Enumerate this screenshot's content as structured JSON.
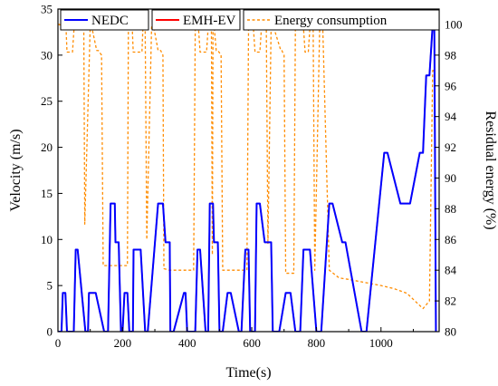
{
  "chart_data": {
    "type": "line",
    "title": "",
    "xlabel": "Time(s)",
    "ylabel_left": "Velocity (m/s)",
    "ylabel_right": "Residual energy  (%)",
    "xlim": [
      0,
      1180
    ],
    "ylim_left": [
      0,
      35
    ],
    "ylim_right": [
      80,
      101
    ],
    "x_ticks": [
      0,
      200,
      400,
      600,
      800,
      1000
    ],
    "y_ticks_left": [
      0,
      5,
      10,
      15,
      20,
      25,
      30,
      35
    ],
    "y_ticks_right": [
      80,
      82,
      84,
      86,
      88,
      90,
      92,
      94,
      96,
      98,
      100
    ],
    "grid": false,
    "legend_position": "top",
    "series": [
      {
        "name": "NEDC",
        "axis": "left",
        "color": "#0000ff",
        "style": "solid",
        "x": [
          0,
          11,
          15,
          23,
          28,
          49,
          55,
          61,
          85,
          93,
          96,
          117,
          143,
          155,
          163,
          176,
          178,
          188,
          195,
          200,
          206,
          215,
          221,
          232,
          234,
          256,
          270,
          278,
          310,
          325,
          333,
          346,
          348,
          358,
          390,
          395,
          400,
          425,
          432,
          440,
          457,
          465,
          470,
          480,
          483,
          495,
          500,
          510,
          525,
          535,
          560,
          568,
          580,
          590,
          595,
          610,
          615,
          625,
          640,
          660,
          665,
          685,
          705,
          720,
          735,
          750,
          760,
          780,
          800,
          815,
          840,
          850,
          880,
          890,
          940,
          955,
          1010,
          1020,
          1060,
          1090,
          1120,
          1130,
          1140,
          1150,
          1160,
          1165,
          1170
        ],
        "y": [
          0,
          0,
          4.2,
          4.2,
          0,
          0,
          8.9,
          8.9,
          0,
          0,
          4.2,
          4.2,
          0,
          0,
          13.9,
          13.9,
          9.7,
          9.7,
          0,
          0,
          4.2,
          4.2,
          0,
          0,
          8.9,
          8.9,
          0,
          0,
          13.9,
          13.9,
          9.7,
          9.7,
          0,
          0,
          4.2,
          4.2,
          0,
          0,
          8.9,
          8.9,
          0,
          0,
          13.9,
          13.9,
          9.7,
          9.7,
          0,
          0,
          4.2,
          4.2,
          0,
          0,
          8.9,
          8.9,
          0,
          0,
          13.9,
          13.9,
          9.7,
          9.7,
          0,
          0,
          4.2,
          4.2,
          0,
          0,
          8.9,
          8.9,
          0,
          0,
          13.9,
          13.9,
          9.7,
          9.7,
          0,
          0,
          19.4,
          19.4,
          13.9,
          13.9,
          19.4,
          19.4,
          27.8,
          27.8,
          33.3,
          33.3,
          0
        ]
      },
      {
        "name": "EMH-EV",
        "axis": "left",
        "color": "#ff0000",
        "style": "solid",
        "x": [
          0,
          11,
          15,
          23,
          28,
          49,
          55,
          61,
          85,
          93,
          96,
          117,
          143,
          155,
          163,
          176,
          178,
          188,
          195,
          200,
          206,
          215,
          221,
          232,
          234,
          256,
          270,
          278,
          310,
          325,
          333,
          346,
          348,
          358,
          390,
          395,
          400,
          425,
          432,
          440,
          457,
          465,
          470,
          480,
          483,
          495,
          500,
          510,
          525,
          535,
          560,
          568,
          580,
          590,
          595,
          610,
          615,
          625,
          640,
          660,
          665,
          685,
          705,
          720,
          735,
          750,
          760,
          780,
          800,
          815,
          840,
          850,
          880,
          890,
          940,
          955,
          1010,
          1020,
          1060,
          1090,
          1120,
          1130,
          1140,
          1150,
          1160,
          1165,
          1170
        ],
        "y": [
          0,
          0,
          4.2,
          4.2,
          0,
          0,
          8.9,
          8.9,
          0,
          0,
          4.2,
          4.2,
          0,
          0,
          13.9,
          13.9,
          9.7,
          9.7,
          0,
          0,
          4.2,
          4.2,
          0,
          0,
          8.9,
          8.9,
          0,
          0,
          13.9,
          13.9,
          9.7,
          9.7,
          0,
          0,
          4.2,
          4.2,
          0,
          0,
          8.9,
          8.9,
          0,
          0,
          13.9,
          13.9,
          9.7,
          9.7,
          0,
          0,
          4.2,
          4.2,
          0,
          0,
          8.9,
          8.9,
          0,
          0,
          13.9,
          13.9,
          9.7,
          9.7,
          0,
          0,
          4.2,
          4.2,
          0,
          0,
          8.9,
          8.9,
          0,
          0,
          13.9,
          13.9,
          9.7,
          9.7,
          0,
          0,
          19.4,
          19.4,
          13.9,
          13.9,
          19.4,
          19.4,
          27.8,
          27.8,
          33.3,
          33.3,
          0
        ]
      },
      {
        "name": "Energy consumption",
        "axis": "right",
        "color": "#ff8c00",
        "style": "dashed",
        "x": [
          0,
          5,
          8,
          25,
          28,
          45,
          50,
          80,
          83,
          100,
          103,
          120,
          125,
          135,
          140,
          165,
          168,
          180,
          183,
          195,
          198,
          205,
          208,
          215,
          218,
          230,
          233,
          260,
          263,
          270,
          275,
          290,
          295,
          310,
          318,
          325,
          328,
          345,
          348,
          355,
          358,
          380,
          385,
          395,
          400,
          405,
          410,
          420,
          425,
          435,
          440,
          460,
          465,
          475,
          478,
          480,
          483,
          490,
          495,
          505,
          510,
          545,
          550,
          555,
          560,
          570,
          573,
          585,
          590,
          605,
          610,
          625,
          630,
          645,
          650,
          660,
          665,
          690,
          693,
          700,
          705,
          715,
          720,
          730,
          735,
          760,
          765,
          775,
          780,
          790,
          795,
          810,
          820,
          840,
          870,
          900,
          950,
          1000,
          1040,
          1080,
          1110,
          1130,
          1150,
          1160,
          1165
        ],
        "y": [
          100,
          100,
          99.8,
          99.8,
          98.2,
          98.2,
          99.8,
          99.8,
          87,
          100,
          100,
          98.3,
          98.3,
          98,
          84.3,
          84.3,
          84.3,
          84.3,
          84.3,
          84.3,
          84.3,
          84.3,
          84.3,
          84.3,
          99.8,
          99.8,
          98.2,
          98.2,
          99.8,
          99.8,
          86,
          100,
          100,
          98.3,
          98.3,
          98,
          84.1,
          84,
          84,
          84,
          84,
          84,
          84,
          84,
          84,
          84,
          84,
          84,
          99.8,
          99.8,
          98.2,
          98.2,
          99.8,
          99.8,
          85,
          100,
          100,
          98.3,
          98.3,
          98,
          84,
          84,
          84,
          84,
          84,
          84,
          84,
          84,
          99.8,
          99.8,
          98.2,
          98.2,
          99.8,
          99.8,
          85.7,
          100,
          100,
          98.3,
          98.3,
          98,
          83.8,
          83.8,
          83.8,
          83.8,
          99.8,
          99.8,
          98.2,
          98.2,
          99.8,
          99.8,
          84,
          99.6,
          99.6,
          84,
          83.5,
          83.4,
          83.2,
          83,
          82.8,
          82.5,
          81.9,
          81.5,
          82,
          97,
          97
        ]
      }
    ]
  }
}
